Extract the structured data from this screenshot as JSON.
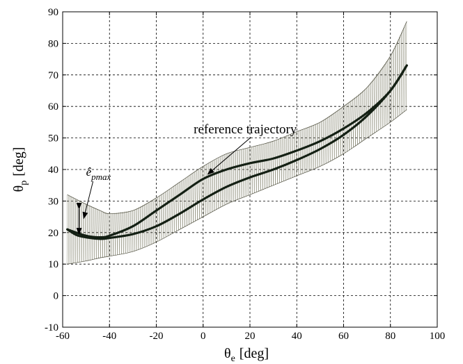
{
  "chart_data": {
    "type": "line",
    "title": "",
    "xlabel": {
      "symbol": "θ",
      "subscript": "e",
      "unit": "[deg]"
    },
    "ylabel": {
      "symbol": "θ",
      "subscript": "p",
      "unit": "[deg]"
    },
    "xlim": [
      -60,
      100
    ],
    "ylim": [
      -10,
      90
    ],
    "xticks": [
      -60,
      -40,
      -20,
      0,
      20,
      40,
      60,
      80,
      100
    ],
    "yticks": [
      -10,
      0,
      10,
      20,
      30,
      40,
      50,
      60,
      70,
      80,
      90
    ],
    "grid": true,
    "series": [
      {
        "role": "reference-upper",
        "x": [
          -58,
          -50,
          -44,
          -40,
          -30,
          -20,
          -10,
          0,
          10,
          20,
          30,
          40,
          50,
          60,
          70,
          80,
          87
        ],
        "y": [
          21,
          19,
          18.5,
          19,
          22,
          27,
          32,
          37,
          40,
          42,
          43.5,
          46,
          49,
          53,
          58,
          65,
          73
        ]
      },
      {
        "role": "reference-lower",
        "x": [
          -58,
          -54,
          -50,
          -44,
          -40,
          -30,
          -20,
          -10,
          0,
          10,
          20,
          30,
          40,
          50,
          60,
          70,
          80,
          87
        ],
        "y": [
          21,
          19.2,
          18.5,
          18,
          18.3,
          19.5,
          22,
          26,
          30.5,
          34.5,
          37.5,
          40,
          43,
          46.5,
          51,
          57,
          65,
          73
        ]
      }
    ],
    "band": {
      "x": [
        -58,
        -50,
        -44,
        -40,
        -30,
        -20,
        -10,
        0,
        10,
        20,
        30,
        40,
        50,
        60,
        70,
        80,
        87
      ],
      "upper": [
        32,
        29,
        27,
        26,
        27,
        31,
        36,
        41,
        45,
        47,
        49,
        52,
        55,
        60,
        66,
        76,
        87
      ],
      "lower": [
        10,
        11,
        12,
        12.5,
        14,
        17,
        21,
        25,
        29,
        32,
        35,
        38,
        41,
        45,
        50,
        55,
        59
      ]
    },
    "annotations": [
      {
        "text": "reference trajectory",
        "x": 18,
        "y": 51.5,
        "arrow_to": [
          2,
          38.5
        ]
      },
      {
        "text_main": "ê",
        "text_sub": "pmax",
        "x": -50,
        "y": 38,
        "arrow_to": [
          -51,
          24.5
        ]
      }
    ]
  }
}
